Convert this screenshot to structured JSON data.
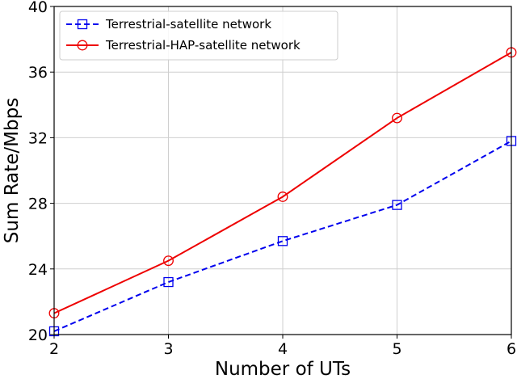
{
  "chart_data": {
    "type": "line",
    "title": "",
    "xlabel": "Number of UTs",
    "ylabel": "Sum Rate/Mbps",
    "x": [
      2,
      3,
      4,
      5,
      6
    ],
    "xlim": [
      2,
      6
    ],
    "ylim": [
      20,
      40
    ],
    "xticks": [
      "2",
      "3",
      "4",
      "5",
      "6"
    ],
    "yticks": [
      "20",
      "24",
      "28",
      "32",
      "36",
      "40"
    ],
    "grid": true,
    "legend_position": "top-left",
    "series": [
      {
        "name": "Terrestrial-satellite network",
        "values": [
          20.2,
          23.2,
          25.7,
          27.9,
          31.8
        ],
        "color": "#0000ee",
        "line_style": "dashed",
        "marker": "square"
      },
      {
        "name": "Terrestrial-HAP-satellite network",
        "values": [
          21.3,
          24.5,
          28.4,
          33.2,
          37.2
        ],
        "color": "#ee0000",
        "line_style": "solid",
        "marker": "circle"
      }
    ]
  }
}
